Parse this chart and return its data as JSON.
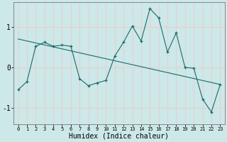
{
  "xlabel": "Humidex (Indice chaleur)",
  "x": [
    0,
    1,
    2,
    3,
    4,
    5,
    6,
    7,
    8,
    9,
    10,
    11,
    12,
    13,
    14,
    15,
    16,
    17,
    18,
    19,
    20,
    21,
    22,
    23
  ],
  "y_main": [
    -0.55,
    -0.35,
    0.52,
    0.62,
    0.52,
    0.55,
    0.52,
    -0.28,
    -0.45,
    -0.38,
    -0.32,
    0.28,
    0.62,
    1.02,
    0.65,
    1.45,
    1.22,
    0.38,
    0.85,
    0.0,
    -0.02,
    -0.78,
    -1.1,
    -0.42
  ],
  "y_trend_x": [
    0,
    23
  ],
  "y_trend_y": [
    0.7,
    -0.42
  ],
  "bg_color": "#cce8e8",
  "line_color": "#1a6b6b",
  "grid_minor_color": "#f0c8c8",
  "grid_major_color": "#c8dada",
  "ylim": [
    -1.4,
    1.6
  ],
  "yticks": [
    -1,
    0,
    1
  ],
  "xlim": [
    -0.5,
    23.5
  ],
  "xtick_fontsize": 5,
  "ytick_fontsize": 7,
  "xlabel_fontsize": 7
}
